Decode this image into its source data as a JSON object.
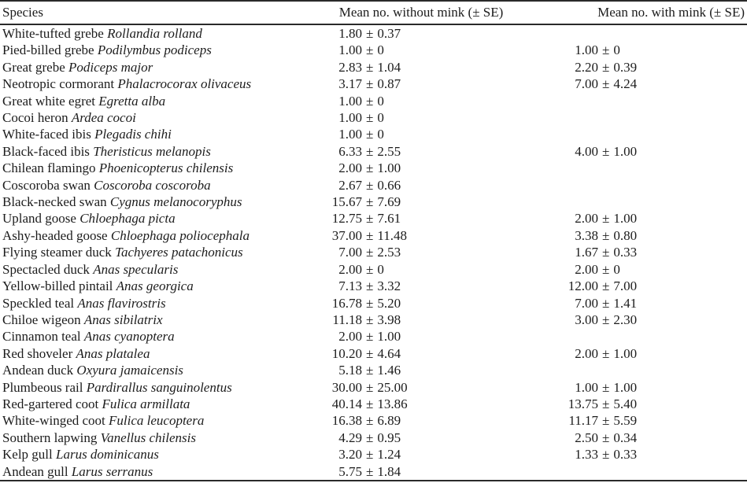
{
  "colors": {
    "text": "#1c1c1c",
    "rule": "#2a2a2a",
    "background": "#ffffff"
  },
  "table": {
    "columns": [
      {
        "label": "Species"
      },
      {
        "label": "Mean no. without mink (± SE)"
      },
      {
        "label": "Mean no. with mink (± SE)"
      }
    ],
    "plus_minus": "±",
    "rows": [
      {
        "common": "White-tufted grebe",
        "scientific": "Rollandia rolland",
        "without_mean": "1.80",
        "without_se": "0.37",
        "with_mean": null,
        "with_se": null
      },
      {
        "common": "Pied-billed grebe",
        "scientific": "Podilymbus podiceps",
        "without_mean": "1.00",
        "without_se": "0",
        "with_mean": "1.00",
        "with_se": "0"
      },
      {
        "common": "Great grebe",
        "scientific": "Podiceps major",
        "without_mean": "2.83",
        "without_se": "1.04",
        "with_mean": "2.20",
        "with_se": "0.39"
      },
      {
        "common": "Neotropic cormorant",
        "scientific": "Phalacrocorax olivaceus",
        "without_mean": "3.17",
        "without_se": "0.87",
        "with_mean": "7.00",
        "with_se": "4.24"
      },
      {
        "common": "Great white egret",
        "scientific": "Egretta alba",
        "without_mean": "1.00",
        "without_se": "0",
        "with_mean": null,
        "with_se": null
      },
      {
        "common": "Cocoi heron",
        "scientific": "Ardea cocoi",
        "without_mean": "1.00",
        "without_se": "0",
        "with_mean": null,
        "with_se": null
      },
      {
        "common": "White-faced ibis",
        "scientific": "Plegadis chihi",
        "without_mean": "1.00",
        "without_se": "0",
        "with_mean": null,
        "with_se": null
      },
      {
        "common": "Black-faced ibis",
        "scientific": "Theristicus melanopis",
        "without_mean": "6.33",
        "without_se": "2.55",
        "with_mean": "4.00",
        "with_se": "1.00"
      },
      {
        "common": "Chilean flamingo",
        "scientific": "Phoenicopterus chilensis",
        "without_mean": "2.00",
        "without_se": "1.00",
        "with_mean": null,
        "with_se": null
      },
      {
        "common": "Coscoroba swan",
        "scientific": "Coscoroba coscoroba",
        "without_mean": "2.67",
        "without_se": "0.66",
        "with_mean": null,
        "with_se": null
      },
      {
        "common": "Black-necked swan",
        "scientific": "Cygnus melanocoryphus",
        "without_mean": "15.67",
        "without_se": "7.69",
        "with_mean": null,
        "with_se": null
      },
      {
        "common": "Upland goose",
        "scientific": "Chloephaga picta",
        "without_mean": "12.75",
        "without_se": "7.61",
        "with_mean": "2.00",
        "with_se": "1.00"
      },
      {
        "common": "Ashy-headed goose",
        "scientific": "Chloephaga poliocephala",
        "without_mean": "37.00",
        "without_se": "11.48",
        "with_mean": "3.38",
        "with_se": "0.80"
      },
      {
        "common": "Flying steamer duck",
        "scientific": "Tachyeres patachonicus",
        "without_mean": "7.00",
        "without_se": "2.53",
        "with_mean": "1.67",
        "with_se": "0.33"
      },
      {
        "common": "Spectacled duck",
        "scientific": "Anas specularis",
        "without_mean": "2.00",
        "without_se": "0",
        "with_mean": "2.00",
        "with_se": "0"
      },
      {
        "common": "Yellow-billed pintail",
        "scientific": "Anas georgica",
        "without_mean": "7.13",
        "without_se": "3.32",
        "with_mean": "12.00",
        "with_se": "7.00"
      },
      {
        "common": "Speckled teal",
        "scientific": "Anas flavirostris",
        "without_mean": "16.78",
        "without_se": "5.20",
        "with_mean": "7.00",
        "with_se": "1.41"
      },
      {
        "common": "Chiloe wigeon",
        "scientific": "Anas sibilatrix",
        "without_mean": "11.18",
        "without_se": "3.98",
        "with_mean": "3.00",
        "with_se": "2.30"
      },
      {
        "common": "Cinnamon teal",
        "scientific": "Anas cyanoptera",
        "without_mean": "2.00",
        "without_se": "1.00",
        "with_mean": null,
        "with_se": null
      },
      {
        "common": "Red shoveler",
        "scientific": "Anas platalea",
        "without_mean": "10.20",
        "without_se": "4.64",
        "with_mean": "2.00",
        "with_se": "1.00"
      },
      {
        "common": "Andean duck",
        "scientific": "Oxyura jamaicensis",
        "without_mean": "5.18",
        "without_se": "1.46",
        "with_mean": null,
        "with_se": null
      },
      {
        "common": "Plumbeous rail",
        "scientific": "Pardirallus sanguinolentus",
        "without_mean": "30.00",
        "without_se": "25.00",
        "with_mean": "1.00",
        "with_se": "1.00"
      },
      {
        "common": "Red-gartered coot",
        "scientific": "Fulica armillata",
        "without_mean": "40.14",
        "without_se": "13.86",
        "with_mean": "13.75",
        "with_se": "5.40"
      },
      {
        "common": "White-winged coot",
        "scientific": "Fulica leucoptera",
        "without_mean": "16.38",
        "without_se": "6.89",
        "with_mean": "11.17",
        "with_se": "5.59"
      },
      {
        "common": "Southern lapwing",
        "scientific": "Vanellus chilensis",
        "without_mean": "4.29",
        "without_se": "0.95",
        "with_mean": "2.50",
        "with_se": "0.34"
      },
      {
        "common": "Kelp gull",
        "scientific": "Larus dominicanus",
        "without_mean": "3.20",
        "without_se": "1.24",
        "with_mean": "1.33",
        "with_se": "0.33"
      },
      {
        "common": "Andean gull",
        "scientific": "Larus serranus",
        "without_mean": "5.75",
        "without_se": "1.84",
        "with_mean": null,
        "with_se": null
      }
    ]
  }
}
